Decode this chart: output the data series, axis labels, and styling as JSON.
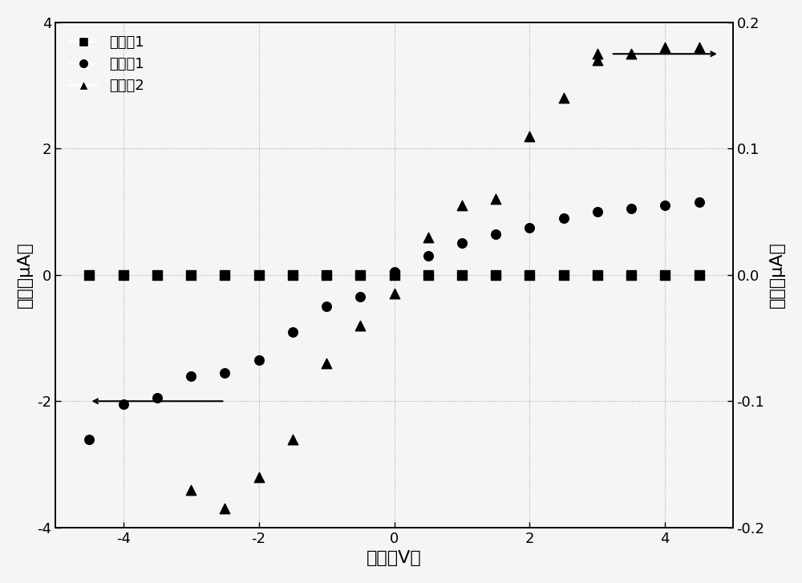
{
  "xlabel": "电压（V）",
  "ylabel_left": "电流（μA）",
  "ylabel_right": "电流（μA）",
  "xlim": [
    -5.0,
    5.0
  ],
  "ylim_left": [
    -4.0,
    4.0
  ],
  "ylim_right": [
    -0.2,
    0.2
  ],
  "legend_labels": [
    "对比例1",
    "实施例1",
    "实施例2"
  ],
  "series1_x": [
    -4.5,
    -4.0,
    -3.5,
    -3.0,
    -2.5,
    -2.0,
    -1.5,
    -1.0,
    -0.5,
    0.0,
    0.5,
    1.0,
    1.5,
    2.0,
    2.5,
    3.0,
    3.5,
    4.0,
    4.5
  ],
  "series1_y": [
    0.0,
    0.0,
    0.0,
    0.0,
    0.0,
    0.0,
    0.0,
    0.0,
    0.0,
    0.0,
    0.0,
    0.0,
    0.0,
    0.0,
    0.0,
    0.0,
    0.0,
    0.0,
    0.0
  ],
  "series2_x": [
    -4.5,
    -4.0,
    -3.5,
    -3.0,
    -2.5,
    -2.0,
    -1.5,
    -1.0,
    -0.5,
    0.0,
    0.5,
    1.0,
    1.5,
    2.0,
    2.5,
    3.0,
    3.5,
    4.0,
    4.5
  ],
  "series2_y": [
    -2.6,
    -2.05,
    -1.95,
    -1.6,
    -1.55,
    -1.35,
    -0.9,
    -0.5,
    -0.35,
    0.05,
    0.3,
    0.5,
    0.65,
    0.75,
    0.9,
    1.0,
    1.05,
    1.1,
    1.15
  ],
  "series3_x": [
    -3.0,
    -2.5,
    -2.0,
    -1.5,
    -1.0,
    -0.5,
    0.0,
    0.5,
    1.0,
    1.5,
    2.0,
    2.5,
    3.0,
    3.5,
    4.0,
    4.5
  ],
  "series3_y_right": [
    -0.17,
    -0.185,
    -0.16,
    -0.13,
    -0.07,
    -0.04,
    -0.015,
    0.03,
    0.055,
    0.06,
    0.11,
    0.14,
    0.17,
    0.175,
    0.18,
    0.18
  ],
  "background_color": "#f5f5f5",
  "marker_size_sq": 70,
  "marker_size_ci": 70,
  "marker_size_tri": 80,
  "font_size_label": 16,
  "font_size_tick": 13,
  "font_size_legend": 13
}
